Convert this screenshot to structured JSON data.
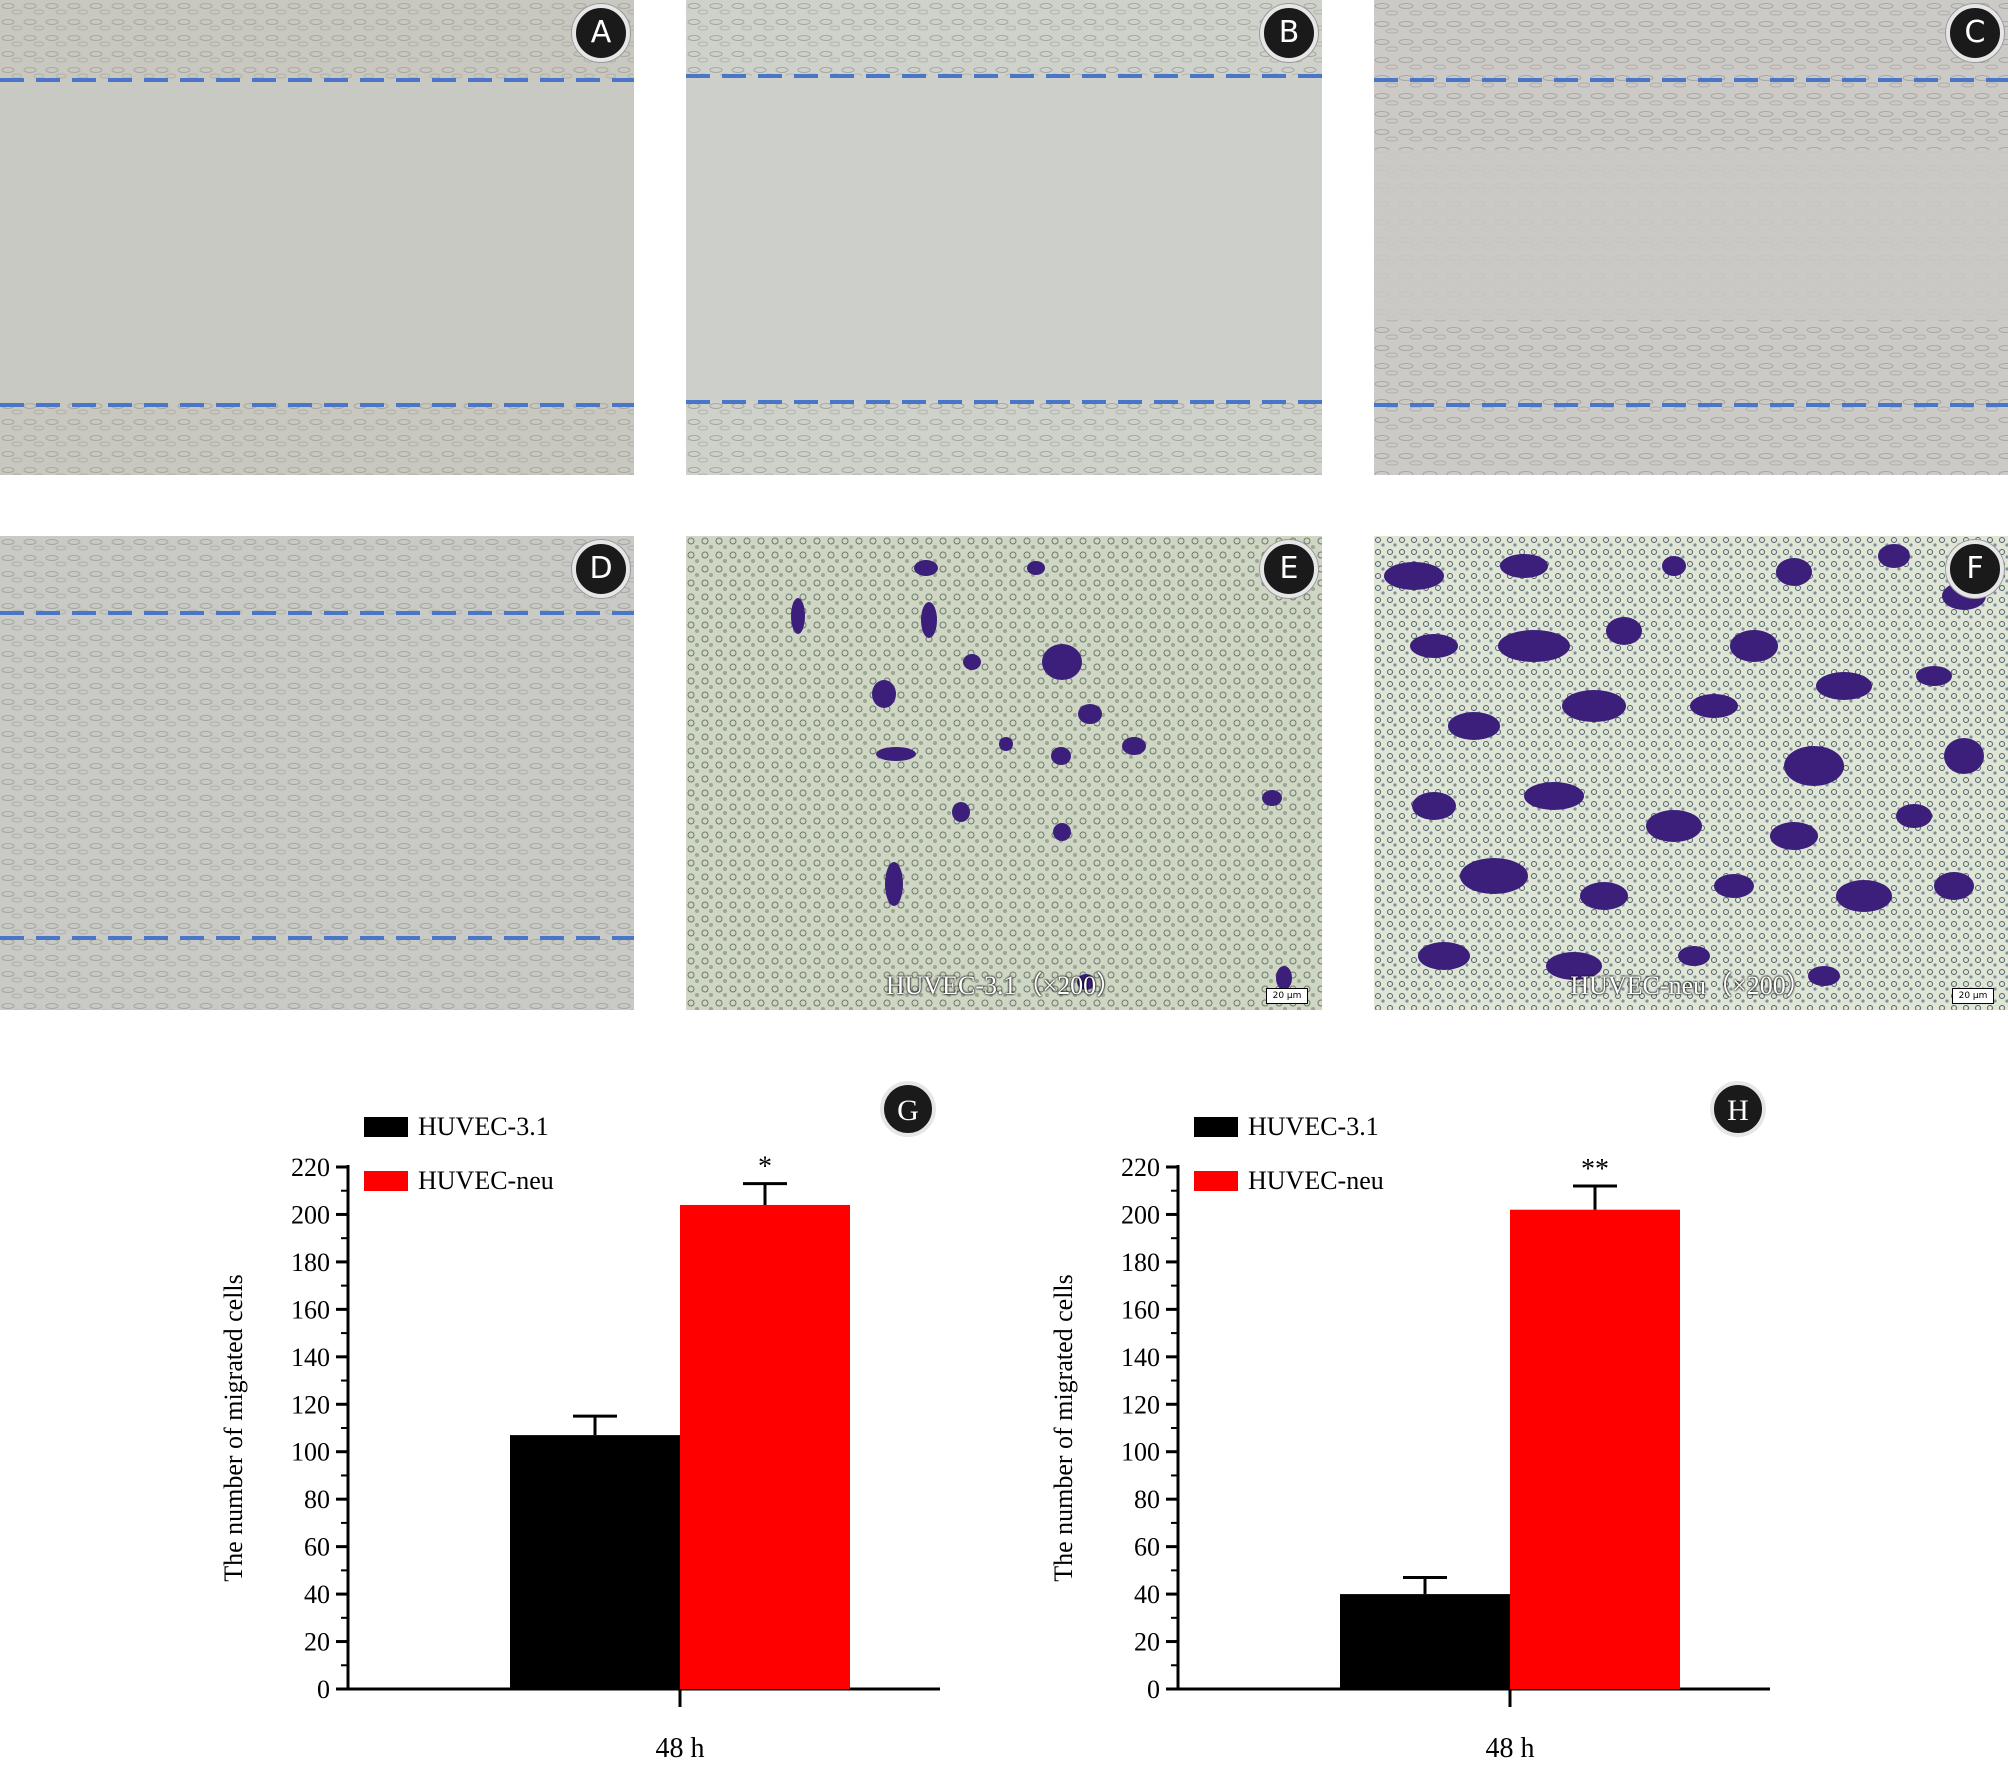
{
  "panels": {
    "A": {
      "label": "A"
    },
    "B": {
      "label": "B"
    },
    "C": {
      "label": "C"
    },
    "D": {
      "label": "D"
    },
    "E": {
      "label": "E",
      "caption": "HUVEC-3.1（×200）",
      "scale": "20 μm"
    },
    "F": {
      "label": "F",
      "caption": "HUVEC-neu（×200）",
      "scale": "20 μm"
    }
  },
  "colors": {
    "dash_line": "#4a76c8",
    "stain": "#3b1f7a",
    "bar1": "#000000",
    "bar2": "#ff0000"
  },
  "chart_data": [
    {
      "panel_label": "G",
      "type": "bar",
      "categories": [
        "48 h"
      ],
      "series": [
        {
          "name": "HUVEC-3.1",
          "values": [
            107
          ],
          "error": [
            8
          ],
          "color": "#000000"
        },
        {
          "name": "HUVEC-neu",
          "values": [
            204
          ],
          "error": [
            9
          ],
          "color": "#ff0000",
          "significance": "*"
        }
      ],
      "xlabel": "48 h",
      "ylabel": "The number of migrated cells",
      "ylim": [
        0,
        220
      ],
      "yticks": [
        "0",
        "20",
        "40",
        "60",
        "80",
        "100",
        "120",
        "140",
        "160",
        "180",
        "200",
        "220"
      ],
      "legend": "top-left",
      "grid": false
    },
    {
      "panel_label": "H",
      "type": "bar",
      "categories": [
        "48 h"
      ],
      "series": [
        {
          "name": "HUVEC-3.1",
          "values": [
            40
          ],
          "error": [
            7
          ],
          "color": "#000000"
        },
        {
          "name": "HUVEC-neu",
          "values": [
            202
          ],
          "error": [
            10
          ],
          "color": "#ff0000",
          "significance": "**"
        }
      ],
      "xlabel": "48 h",
      "ylabel": "The number of migrated cells",
      "ylim": [
        0,
        220
      ],
      "yticks": [
        "0",
        "20",
        "40",
        "60",
        "80",
        "100",
        "120",
        "140",
        "160",
        "180",
        "200",
        "220"
      ],
      "legend": "top-left",
      "grid": false
    }
  ]
}
